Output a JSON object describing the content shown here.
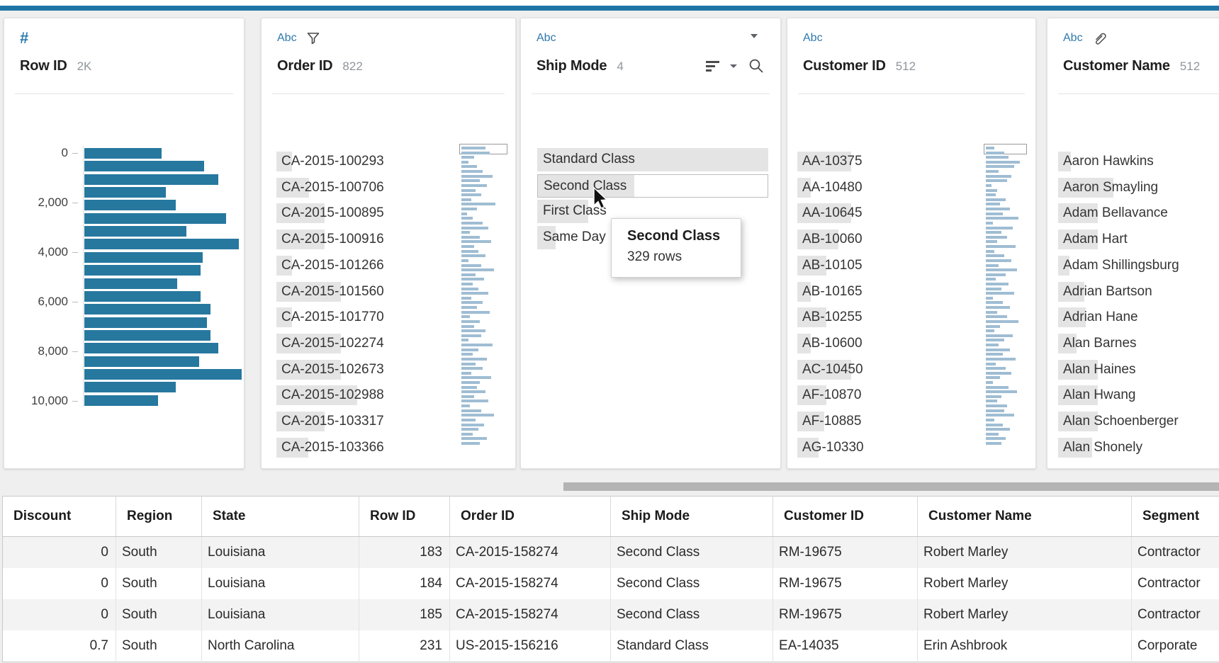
{
  "app": {
    "accent_color": "#1f76a6"
  },
  "panes": [
    {
      "field": "Row ID",
      "type_label": "#",
      "count": "2K",
      "histogram": {
        "type": "bar",
        "orientation": "horizontal",
        "ticks": [
          "0",
          "2,000",
          "4,000",
          "6,000",
          "8,000",
          "10,000"
        ],
        "axis_range": [
          0,
          10000
        ],
        "bar_fractions": [
          0.49,
          0.76,
          0.85,
          0.52,
          0.58,
          0.9,
          0.65,
          0.98,
          0.75,
          0.74,
          0.59,
          0.74,
          0.8,
          0.78,
          0.8,
          0.85,
          0.73,
          1.0,
          0.58,
          0.47
        ],
        "bar_color": "#26789f"
      }
    },
    {
      "field": "Order ID",
      "type_label": "Abc",
      "count": "822",
      "items": [
        {
          "label": "CA-2015-100293",
          "bar": 22
        },
        {
          "label": "CA-2015-100706",
          "bar": 46
        },
        {
          "label": "CA-2015-100895",
          "bar": 68
        },
        {
          "label": "CA-2015-100916",
          "bar": 68
        },
        {
          "label": "CA-2015-101266",
          "bar": 22
        },
        {
          "label": "CA-2015-101560",
          "bar": 91
        },
        {
          "label": "CA-2015-101770",
          "bar": 22
        },
        {
          "label": "CA-2015-102274",
          "bar": 91
        },
        {
          "label": "CA-2015-102673",
          "bar": 91
        },
        {
          "label": "CA-2015-102988",
          "bar": 114
        },
        {
          "label": "CA-2015-103317",
          "bar": 68
        },
        {
          "label": "CA-2015-103366",
          "bar": 45
        }
      ],
      "mini": {
        "boxed_first": true,
        "widths": [
          34,
          40,
          18,
          10,
          22,
          30,
          44,
          26,
          36,
          20,
          28,
          14,
          48,
          22,
          8,
          16,
          30,
          38,
          12,
          26,
          42,
          18,
          24,
          34,
          10,
          28,
          46,
          20,
          32,
          16,
          24,
          38,
          14,
          30,
          22,
          40,
          12,
          26,
          18,
          34,
          28,
          10,
          44,
          24,
          16,
          36,
          20,
          30,
          14,
          42,
          26,
          22,
          34,
          18,
          38,
          12,
          28,
          46,
          20,
          32,
          24,
          16,
          36,
          26
        ]
      }
    },
    {
      "field": "Ship Mode",
      "type_label": "Abc",
      "count": "4",
      "items": [
        {
          "label": "Standard Class",
          "fill": 1.0,
          "outlined": false
        },
        {
          "label": "Second Class",
          "fill": 0.42,
          "outlined": true
        },
        {
          "label": "First Class",
          "fill": 0.22,
          "outlined": false
        },
        {
          "label": "Same Day",
          "fill": 0.08,
          "outlined": false
        }
      ]
    },
    {
      "field": "Customer ID",
      "type_label": "Abc",
      "count": "512",
      "items": [
        {
          "label": "AA-10375",
          "bar": 76
        },
        {
          "label": "AA-10480",
          "bar": 19
        },
        {
          "label": "AA-10645",
          "bar": 76
        },
        {
          "label": "AB-10060",
          "bar": 58
        },
        {
          "label": "AB-10105",
          "bar": 41
        },
        {
          "label": "AB-10165",
          "bar": 19
        },
        {
          "label": "AB-10255",
          "bar": 41
        },
        {
          "label": "AB-10600",
          "bar": 19
        },
        {
          "label": "AC-10450",
          "bar": 76
        },
        {
          "label": "AF-10870",
          "bar": 41
        },
        {
          "label": "AF-10885",
          "bar": 38
        },
        {
          "label": "AG-10330",
          "bar": 30
        }
      ],
      "mini": {
        "boxed_first": true,
        "widths": [
          12,
          26,
          32,
          48,
          40,
          18,
          36,
          30,
          8,
          16,
          14,
          28,
          20,
          34,
          24,
          46,
          10,
          38,
          22,
          30,
          16,
          42,
          12,
          26,
          36,
          18,
          44,
          28,
          14,
          32,
          22,
          40,
          10,
          24,
          34,
          16,
          30,
          46,
          20,
          12,
          38,
          26,
          18,
          34,
          24,
          42,
          14,
          28,
          36,
          20,
          10,
          32,
          44,
          22,
          16,
          30,
          26,
          40,
          12,
          24,
          34,
          18,
          28,
          22
        ]
      }
    },
    {
      "field": "Customer Name",
      "type_label": "Abc",
      "count": "512",
      "items": [
        {
          "label": "Aaron Hawkins",
          "bar": 18
        },
        {
          "label": "Aaron Smayling",
          "bar": 78
        },
        {
          "label": "Adam Bellavance",
          "bar": 56
        },
        {
          "label": "Adam Hart",
          "bar": 56
        },
        {
          "label": "Adam Shillingsburg",
          "bar": 16
        },
        {
          "label": "Adrian Bartson",
          "bar": 37
        },
        {
          "label": "Adrian Hane",
          "bar": 39
        },
        {
          "label": "Alan Barnes",
          "bar": 26
        },
        {
          "label": "Alan Haines",
          "bar": 56
        },
        {
          "label": "Alan Hwang",
          "bar": 56
        },
        {
          "label": "Alan Schoenberger",
          "bar": 56
        },
        {
          "label": "Alan Shonely",
          "bar": 48
        }
      ]
    }
  ],
  "tooltip": {
    "title": "Second Class",
    "subtitle": "329 rows"
  },
  "grid": {
    "columns": [
      {
        "label": "Discount",
        "align": "right"
      },
      {
        "label": "Region",
        "align": "left"
      },
      {
        "label": "State",
        "align": "left"
      },
      {
        "label": "Row ID",
        "align": "right"
      },
      {
        "label": "Order ID",
        "align": "left"
      },
      {
        "label": "Ship Mode",
        "align": "left"
      },
      {
        "label": "Customer ID",
        "align": "left"
      },
      {
        "label": "Customer Name",
        "align": "left"
      },
      {
        "label": "Segment",
        "align": "left"
      }
    ],
    "rows": [
      [
        "0",
        "South",
        "Louisiana",
        "183",
        "CA-2015-158274",
        "Second Class",
        "RM-19675",
        "Robert Marley",
        "Contractor"
      ],
      [
        "0",
        "South",
        "Louisiana",
        "184",
        "CA-2015-158274",
        "Second Class",
        "RM-19675",
        "Robert Marley",
        "Contractor"
      ],
      [
        "0",
        "South",
        "Louisiana",
        "185",
        "CA-2015-158274",
        "Second Class",
        "RM-19675",
        "Robert Marley",
        "Contractor"
      ],
      [
        "0.7",
        "South",
        "North Carolina",
        "231",
        "US-2015-156216",
        "Standard Class",
        "EA-14035",
        "Erin Ashbrook",
        "Corporate"
      ]
    ]
  }
}
